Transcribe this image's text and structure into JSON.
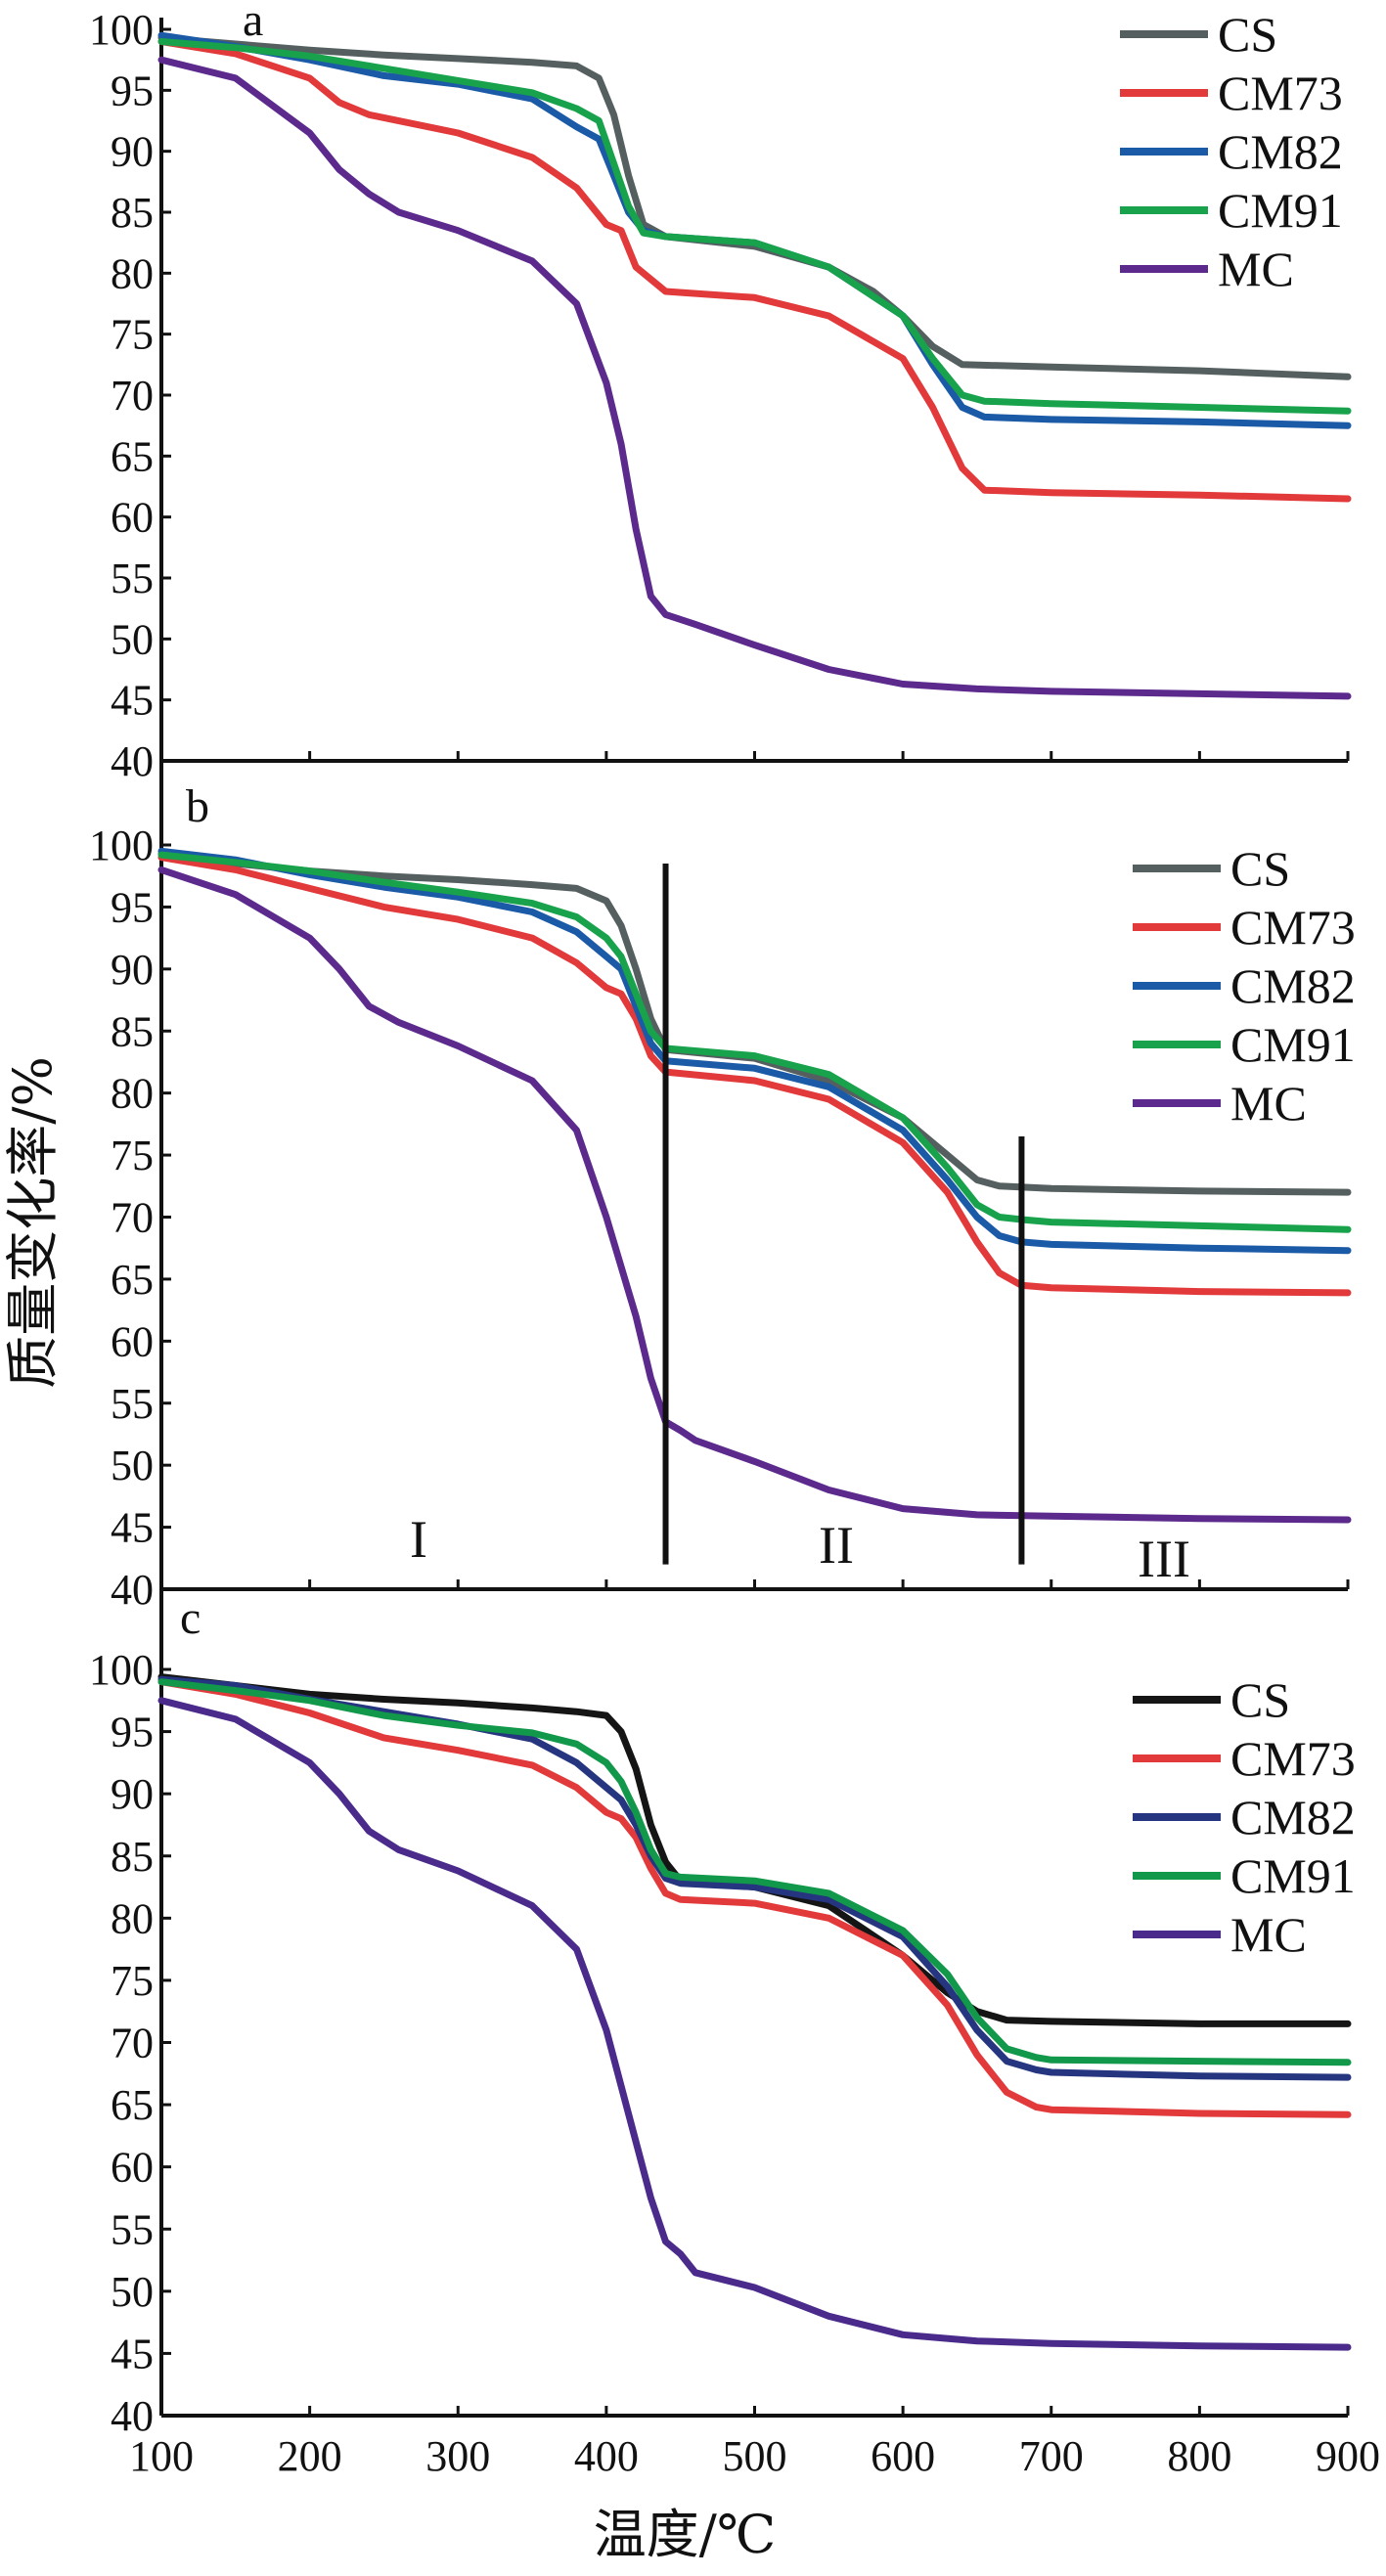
{
  "x_axis_label": "温度/℃",
  "y_axis_label": "质量变化率/%",
  "legend": [
    {
      "name": "CS",
      "color_ab": "#555f5f",
      "color_c": "#151515"
    },
    {
      "name": "CM73",
      "color_ab": "#e2393b",
      "color_c": "#e2393b"
    },
    {
      "name": "CM82",
      "color_ab": "#1b5aa6",
      "color_c": "#25357f"
    },
    {
      "name": "CM91",
      "color_ab": "#17a24b",
      "color_c": "#12984a"
    },
    {
      "name": "MC",
      "color_ab": "#5b2a8c",
      "color_c": "#4a2a8a"
    }
  ],
  "region_labels": [
    "I",
    "II",
    "III"
  ],
  "region_boundaries_celsius": [
    440,
    680
  ],
  "chart_data": [
    {
      "type": "line",
      "panel": "a",
      "xlabel": "温度/℃",
      "ylabel": "质量变化率/%",
      "xlim": [
        100,
        900
      ],
      "ylim": [
        40,
        100
      ],
      "x_ticks": [
        100,
        200,
        300,
        400,
        500,
        600,
        700,
        800,
        900
      ],
      "y_ticks": [
        40,
        45,
        50,
        55,
        60,
        65,
        70,
        75,
        80,
        85,
        90,
        95,
        100
      ],
      "series": [
        {
          "name": "CS",
          "x": [
            100,
            150,
            200,
            250,
            300,
            350,
            380,
            395,
            405,
            415,
            425,
            440,
            500,
            550,
            580,
            600,
            620,
            640,
            700,
            800,
            900
          ],
          "y": [
            99.3,
            98.8,
            98.3,
            97.9,
            97.6,
            97.3,
            97.0,
            96.0,
            93.0,
            88.0,
            84.0,
            83.0,
            82.2,
            80.5,
            78.5,
            76.5,
            74.0,
            72.5,
            72.3,
            72.0,
            71.5
          ]
        },
        {
          "name": "CM73",
          "x": [
            100,
            150,
            200,
            220,
            240,
            300,
            350,
            380,
            400,
            410,
            420,
            440,
            500,
            550,
            600,
            620,
            640,
            655,
            700,
            800,
            900
          ],
          "y": [
            99.0,
            98.0,
            96.0,
            94.0,
            93.0,
            91.5,
            89.5,
            87.0,
            84.0,
            83.5,
            80.5,
            78.5,
            78.0,
            76.5,
            73.0,
            69.0,
            64.0,
            62.2,
            62.0,
            61.8,
            61.5
          ]
        },
        {
          "name": "CM82",
          "x": [
            100,
            150,
            200,
            250,
            300,
            350,
            380,
            395,
            405,
            415,
            425,
            440,
            500,
            550,
            600,
            620,
            640,
            655,
            700,
            800,
            900
          ],
          "y": [
            99.5,
            98.6,
            97.5,
            96.2,
            95.5,
            94.3,
            92.0,
            91.0,
            88.0,
            85.0,
            83.5,
            83.0,
            82.5,
            80.5,
            76.5,
            72.5,
            69.0,
            68.2,
            68.0,
            67.8,
            67.5
          ]
        },
        {
          "name": "CM91",
          "x": [
            100,
            150,
            200,
            250,
            300,
            350,
            380,
            395,
            405,
            415,
            425,
            440,
            500,
            550,
            600,
            620,
            640,
            655,
            700,
            800,
            900
          ],
          "y": [
            99.0,
            98.5,
            97.8,
            96.8,
            95.8,
            94.8,
            93.5,
            92.5,
            89.0,
            85.5,
            83.3,
            83.0,
            82.5,
            80.5,
            76.5,
            73.0,
            70.0,
            69.5,
            69.3,
            69.0,
            68.7
          ]
        },
        {
          "name": "MC",
          "x": [
            100,
            150,
            200,
            220,
            240,
            260,
            300,
            350,
            380,
            400,
            410,
            420,
            430,
            440,
            460,
            500,
            550,
            600,
            650,
            700,
            800,
            900
          ],
          "y": [
            97.5,
            96.0,
            91.5,
            88.5,
            86.5,
            85.0,
            83.5,
            81.0,
            77.5,
            71.0,
            66.0,
            59.0,
            53.5,
            52.0,
            51.2,
            49.5,
            47.5,
            46.3,
            45.9,
            45.7,
            45.5,
            45.3
          ]
        }
      ]
    },
    {
      "type": "line",
      "panel": "b",
      "xlabel": "温度/℃",
      "ylabel": "质量变化率/%",
      "xlim": [
        100,
        900
      ],
      "ylim": [
        40,
        100
      ],
      "x_ticks": [
        100,
        200,
        300,
        400,
        500,
        600,
        700,
        800,
        900
      ],
      "y_ticks": [
        40,
        45,
        50,
        55,
        60,
        65,
        70,
        75,
        80,
        85,
        90,
        95,
        100
      ],
      "series": [
        {
          "name": "CS",
          "x": [
            100,
            150,
            200,
            250,
            300,
            350,
            380,
            400,
            410,
            420,
            430,
            440,
            500,
            550,
            600,
            630,
            650,
            665,
            700,
            800,
            900
          ],
          "y": [
            99.3,
            98.5,
            97.9,
            97.5,
            97.2,
            96.8,
            96.5,
            95.5,
            93.5,
            90.0,
            86.0,
            83.5,
            82.8,
            81.0,
            78.0,
            75.0,
            73.0,
            72.5,
            72.3,
            72.1,
            72.0
          ]
        },
        {
          "name": "CM73",
          "x": [
            100,
            150,
            200,
            250,
            300,
            350,
            380,
            400,
            410,
            420,
            430,
            440,
            500,
            550,
            600,
            630,
            650,
            665,
            680,
            700,
            800,
            900
          ],
          "y": [
            99.0,
            98.0,
            96.5,
            95.0,
            94.0,
            92.5,
            90.5,
            88.5,
            88.0,
            86.0,
            83.0,
            81.7,
            81.0,
            79.5,
            76.0,
            72.0,
            68.0,
            65.5,
            64.5,
            64.3,
            64.0,
            63.9
          ]
        },
        {
          "name": "CM82",
          "x": [
            100,
            150,
            200,
            250,
            300,
            350,
            380,
            400,
            410,
            420,
            430,
            440,
            500,
            550,
            600,
            630,
            650,
            665,
            680,
            700,
            800,
            900
          ],
          "y": [
            99.5,
            98.8,
            97.6,
            96.6,
            95.8,
            94.6,
            93.0,
            91.0,
            90.0,
            87.0,
            84.0,
            82.6,
            82.0,
            80.5,
            77.0,
            73.0,
            70.0,
            68.5,
            68.0,
            67.8,
            67.5,
            67.3
          ]
        },
        {
          "name": "CM91",
          "x": [
            100,
            150,
            200,
            250,
            300,
            350,
            380,
            400,
            410,
            420,
            430,
            440,
            500,
            550,
            600,
            630,
            650,
            665,
            680,
            700,
            800,
            900
          ],
          "y": [
            99.2,
            98.6,
            97.9,
            97.0,
            96.2,
            95.3,
            94.2,
            92.5,
            91.0,
            88.0,
            85.0,
            83.6,
            83.0,
            81.5,
            78.0,
            74.0,
            71.0,
            70.0,
            69.8,
            69.6,
            69.3,
            69.0
          ]
        },
        {
          "name": "MC",
          "x": [
            100,
            150,
            200,
            220,
            240,
            260,
            300,
            350,
            380,
            400,
            420,
            430,
            440,
            450,
            460,
            500,
            550,
            600,
            650,
            700,
            800,
            900
          ],
          "y": [
            98.0,
            96.0,
            92.5,
            90.0,
            87.0,
            85.7,
            83.8,
            81.0,
            77.0,
            70.0,
            62.0,
            57.0,
            53.5,
            52.8,
            52.0,
            50.3,
            48.0,
            46.5,
            46.0,
            45.9,
            45.7,
            45.6
          ]
        }
      ]
    },
    {
      "type": "line",
      "panel": "c",
      "xlabel": "温度/℃",
      "ylabel": "质量变化率/%",
      "xlim": [
        100,
        900
      ],
      "ylim": [
        40,
        100
      ],
      "x_ticks": [
        100,
        200,
        300,
        400,
        500,
        600,
        700,
        800,
        900
      ],
      "y_ticks": [
        40,
        45,
        50,
        55,
        60,
        65,
        70,
        75,
        80,
        85,
        90,
        95,
        100
      ],
      "series": [
        {
          "name": "CS",
          "x": [
            100,
            150,
            200,
            250,
            300,
            350,
            380,
            400,
            410,
            420,
            430,
            440,
            450,
            500,
            550,
            600,
            630,
            650,
            670,
            700,
            800,
            900
          ],
          "y": [
            99.4,
            98.7,
            98.0,
            97.6,
            97.3,
            96.9,
            96.6,
            96.3,
            95.0,
            92.0,
            87.5,
            84.5,
            83.0,
            82.5,
            81.0,
            77.0,
            74.0,
            72.5,
            71.8,
            71.7,
            71.5,
            71.5
          ]
        },
        {
          "name": "CM73",
          "x": [
            100,
            150,
            200,
            250,
            300,
            350,
            380,
            400,
            410,
            420,
            430,
            440,
            450,
            500,
            550,
            600,
            630,
            650,
            670,
            690,
            700,
            800,
            900
          ],
          "y": [
            99.0,
            98.0,
            96.5,
            94.5,
            93.5,
            92.3,
            90.5,
            88.5,
            88.0,
            86.5,
            84.0,
            82.0,
            81.5,
            81.2,
            80.0,
            77.0,
            73.0,
            69.0,
            66.0,
            64.8,
            64.6,
            64.3,
            64.2
          ]
        },
        {
          "name": "CM82",
          "x": [
            100,
            150,
            200,
            250,
            300,
            350,
            380,
            400,
            410,
            420,
            430,
            440,
            450,
            500,
            550,
            600,
            630,
            650,
            670,
            690,
            700,
            800,
            900
          ],
          "y": [
            99.2,
            98.7,
            97.6,
            96.6,
            95.6,
            94.4,
            92.5,
            90.5,
            89.5,
            87.5,
            85.0,
            83.2,
            82.8,
            82.5,
            81.5,
            78.5,
            74.5,
            71.0,
            68.5,
            67.8,
            67.6,
            67.3,
            67.2
          ]
        },
        {
          "name": "CM91",
          "x": [
            100,
            150,
            200,
            250,
            300,
            350,
            380,
            400,
            410,
            420,
            430,
            440,
            450,
            500,
            550,
            600,
            630,
            650,
            670,
            690,
            700,
            800,
            900
          ],
          "y": [
            99.0,
            98.3,
            97.5,
            96.3,
            95.5,
            94.9,
            94.0,
            92.5,
            91.0,
            88.5,
            85.5,
            83.6,
            83.3,
            83.0,
            82.0,
            79.0,
            75.5,
            72.0,
            69.5,
            68.8,
            68.6,
            68.5,
            68.4
          ]
        },
        {
          "name": "MC",
          "x": [
            100,
            150,
            200,
            220,
            240,
            260,
            300,
            350,
            380,
            400,
            420,
            430,
            440,
            450,
            460,
            500,
            550,
            600,
            650,
            700,
            800,
            900
          ],
          "y": [
            97.5,
            96.0,
            92.5,
            90.0,
            87.0,
            85.5,
            83.8,
            81.0,
            77.5,
            71.0,
            62.0,
            57.5,
            54.0,
            53.0,
            51.5,
            50.3,
            48.0,
            46.5,
            46.0,
            45.8,
            45.6,
            45.5
          ]
        }
      ]
    }
  ]
}
